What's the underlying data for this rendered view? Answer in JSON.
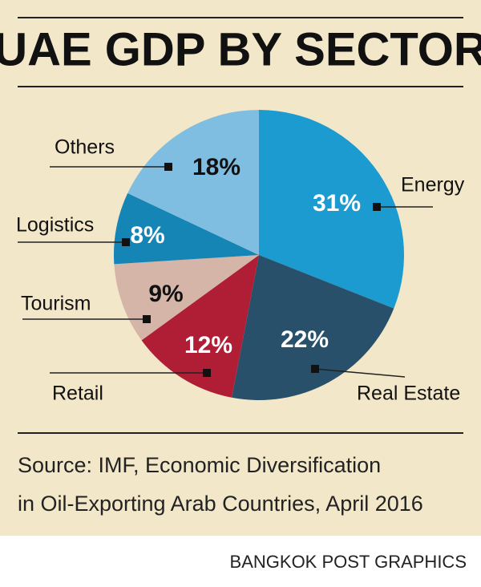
{
  "chart_data": {
    "type": "pie",
    "title": "UAE GDP BY SECTOR",
    "categories": [
      "Energy",
      "Real Estate",
      "Retail",
      "Tourism",
      "Logistics",
      "Others"
    ],
    "values": [
      31,
      22,
      12,
      9,
      8,
      18
    ],
    "value_labels": [
      "31%",
      "22%",
      "12%",
      "9%",
      "8%",
      "18%"
    ],
    "colors": [
      "#1b9bd0",
      "#28506a",
      "#b01e36",
      "#d4b5a7",
      "#1585b6",
      "#80bee1"
    ],
    "source": [
      "Source: IMF, Economic Diversification",
      "in Oil-Exporting Arab Countries, April 2016"
    ],
    "credit": "BANGKOK POST GRAPHICS"
  }
}
